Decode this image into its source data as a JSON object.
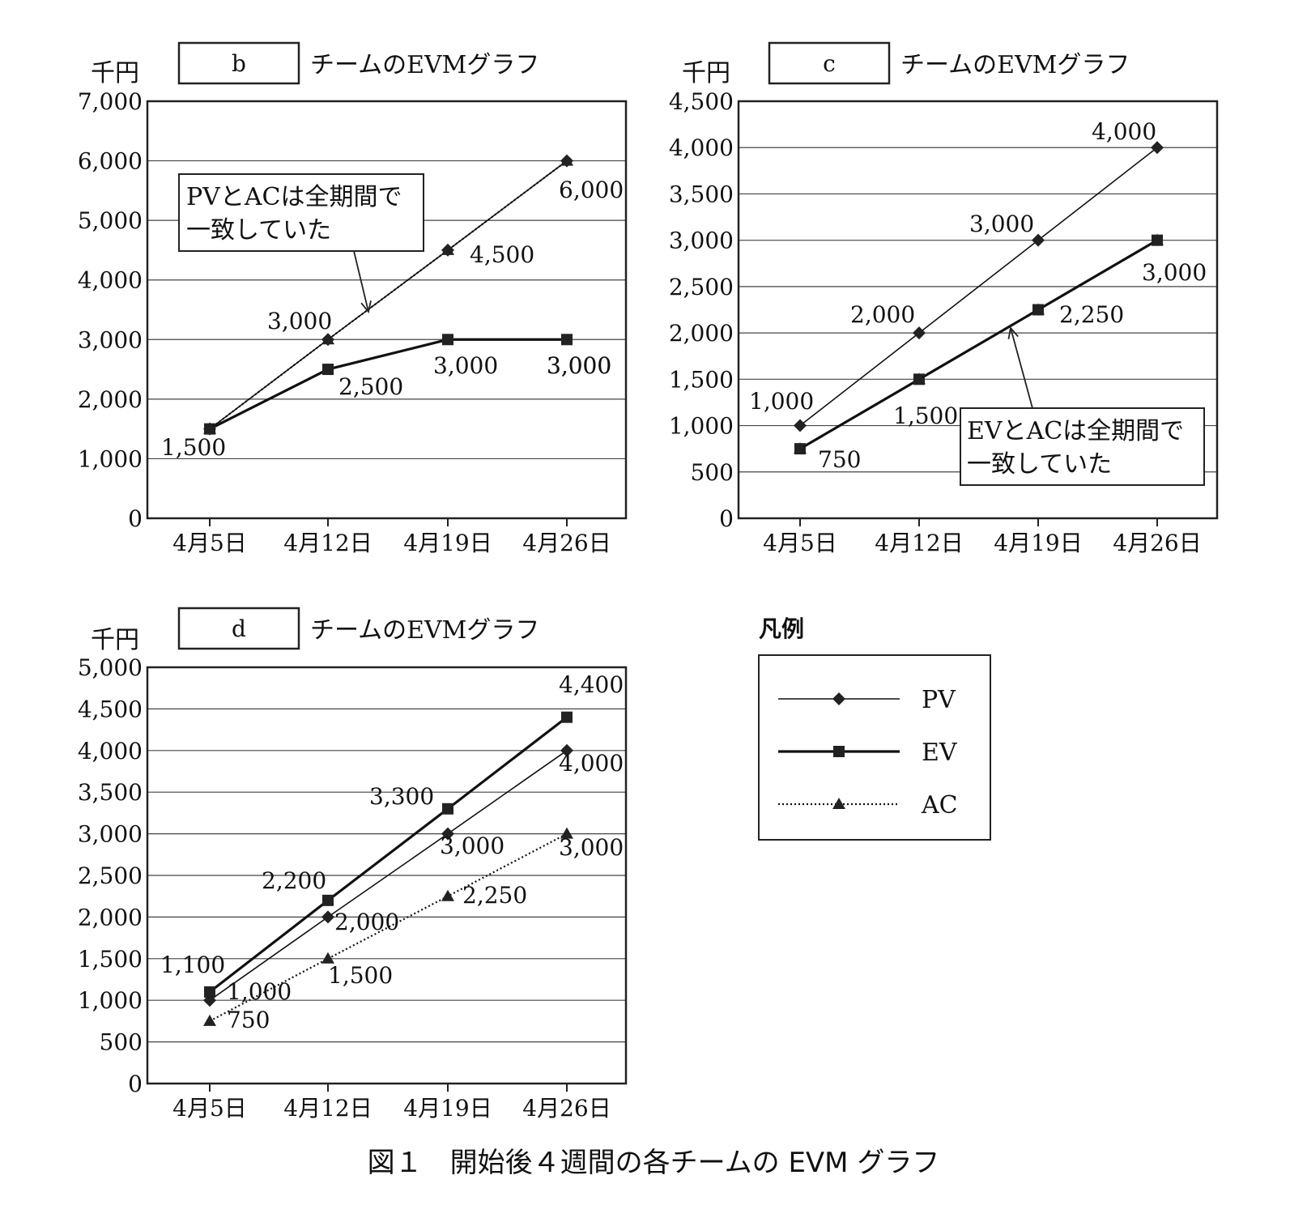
{
  "figure_caption": "図１　開始後４週間の各チームの EVM グラフ",
  "legend": {
    "title": "凡例",
    "items": [
      {
        "name": "PV",
        "style": "thin-solid",
        "marker": "diamond"
      },
      {
        "name": "EV",
        "style": "thick-solid",
        "marker": "square"
      },
      {
        "name": "AC",
        "style": "dotted",
        "marker": "triangle"
      }
    ]
  },
  "chart_data": [
    {
      "type": "line",
      "title_box": "b",
      "title": "チームのEVMグラフ",
      "ylabel": "千円",
      "categories": [
        "4月5日",
        "4月12日",
        "4月19日",
        "4月26日"
      ],
      "ylim": [
        0,
        7000
      ],
      "yticks": [
        0,
        1000,
        2000,
        3000,
        4000,
        5000,
        6000,
        7000
      ],
      "ytick_labels": [
        "0",
        "1,000",
        "2,000",
        "3,000",
        "4,000",
        "5,000",
        "6,000",
        "7,000"
      ],
      "grid": true,
      "series": [
        {
          "name": "PV",
          "values": [
            1500,
            3000,
            4500,
            6000
          ]
        },
        {
          "name": "EV",
          "values": [
            1500,
            2500,
            3000,
            3000
          ]
        },
        {
          "name": "AC",
          "values": [
            1500,
            3000,
            4500,
            6000
          ]
        }
      ],
      "data_labels": [
        "1,500",
        "3,000",
        "2,500",
        "3,000",
        "4,500",
        "3,000",
        "6,000",
        "3,000"
      ],
      "annotation": {
        "line1": "PVとACは全期間で",
        "line2": "一致していた"
      }
    },
    {
      "type": "line",
      "title_box": "c",
      "title": "チームのEVMグラフ",
      "ylabel": "千円",
      "categories": [
        "4月5日",
        "4月12日",
        "4月19日",
        "4月26日"
      ],
      "ylim": [
        0,
        4500
      ],
      "yticks": [
        0,
        500,
        1000,
        1500,
        2000,
        2500,
        3000,
        3500,
        4000,
        4500
      ],
      "ytick_labels": [
        "0",
        "500",
        "1,000",
        "1,500",
        "2,000",
        "2,500",
        "3,000",
        "3,500",
        "4,000",
        "4,500"
      ],
      "grid": true,
      "series": [
        {
          "name": "PV",
          "values": [
            1000,
            2000,
            3000,
            4000
          ]
        },
        {
          "name": "EV",
          "values": [
            750,
            1500,
            2250,
            3000
          ]
        },
        {
          "name": "AC",
          "values": [
            750,
            1500,
            2250,
            3000
          ]
        }
      ],
      "data_labels": [
        "1,000",
        "750",
        "2,000",
        "1,500",
        "3,000",
        "2,250",
        "4,000",
        "3,000"
      ],
      "annotation": {
        "line1": "EVとACは全期間で",
        "line2": "一致していた"
      }
    },
    {
      "type": "line",
      "title_box": "d",
      "title": "チームのEVMグラフ",
      "ylabel": "千円",
      "categories": [
        "4月5日",
        "4月12日",
        "4月19日",
        "4月26日"
      ],
      "ylim": [
        0,
        5000
      ],
      "yticks": [
        0,
        500,
        1000,
        1500,
        2000,
        2500,
        3000,
        3500,
        4000,
        4500,
        5000
      ],
      "ytick_labels": [
        "0",
        "500",
        "1,000",
        "1,500",
        "2,000",
        "2,500",
        "3,000",
        "3,500",
        "4,000",
        "4,500",
        "5,000"
      ],
      "grid": true,
      "series": [
        {
          "name": "PV",
          "values": [
            1000,
            2000,
            3000,
            4000
          ]
        },
        {
          "name": "EV",
          "values": [
            1100,
            2200,
            3300,
            4400
          ]
        },
        {
          "name": "AC",
          "values": [
            750,
            1500,
            2250,
            3000
          ]
        }
      ],
      "data_labels": [
        "1,100",
        "1,000",
        "750",
        "2,200",
        "2,000",
        "1,500",
        "3,300",
        "3,000",
        "2,250",
        "4,400",
        "4,000",
        "3,000"
      ]
    }
  ]
}
